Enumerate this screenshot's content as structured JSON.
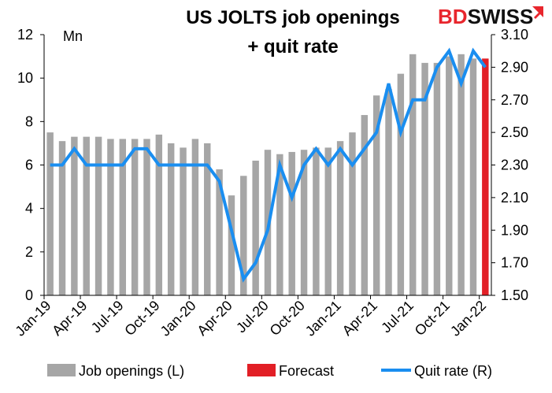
{
  "brand": {
    "text_bd": "BD",
    "text_swiss": "SWISS",
    "color_bd": "#e8262d",
    "color_swiss": "#111111"
  },
  "chart_data": {
    "type": "bar",
    "title": "US JOLTS job openings",
    "subtitle": "+ quit rate",
    "unit_label": "Mn",
    "left_axis": {
      "ylim": [
        0,
        12
      ],
      "ticks": [
        "0",
        "2",
        "4",
        "6",
        "8",
        "10",
        "12"
      ]
    },
    "right_axis": {
      "ylim": [
        1.5,
        3.1
      ],
      "ticks": [
        "1.50",
        "1.70",
        "1.90",
        "2.10",
        "2.30",
        "2.50",
        "2.70",
        "2.90",
        "3.10"
      ]
    },
    "x_tick_labels": [
      "Jan-19",
      "Apr-19",
      "Jul-19",
      "Oct-19",
      "Jan-20",
      "Apr-20",
      "Jul-20",
      "Oct-20",
      "Jan-21",
      "Apr-21",
      "Jul-21",
      "Oct-21",
      "Jan-22"
    ],
    "categories": [
      "Jan-19",
      "Feb-19",
      "Mar-19",
      "Apr-19",
      "May-19",
      "Jun-19",
      "Jul-19",
      "Aug-19",
      "Sep-19",
      "Oct-19",
      "Nov-19",
      "Dec-19",
      "Jan-20",
      "Feb-20",
      "Mar-20",
      "Apr-20",
      "May-20",
      "Jun-20",
      "Jul-20",
      "Aug-20",
      "Sep-20",
      "Oct-20",
      "Nov-20",
      "Dec-20",
      "Jan-21",
      "Feb-21",
      "Mar-21",
      "Apr-21",
      "May-21",
      "Jun-21",
      "Jul-21",
      "Aug-21",
      "Sep-21",
      "Oct-21",
      "Nov-21",
      "Dec-21",
      "Jan-22"
    ],
    "series": [
      {
        "name": "Job openings (L)",
        "type": "bar",
        "axis": "left",
        "color": "#a6a6a6",
        "values": [
          7.5,
          7.1,
          7.3,
          7.3,
          7.3,
          7.2,
          7.2,
          7.2,
          7.2,
          7.4,
          7.0,
          6.8,
          7.2,
          7.0,
          5.8,
          4.6,
          5.5,
          6.2,
          6.7,
          6.5,
          6.6,
          6.7,
          6.8,
          6.8,
          7.1,
          7.5,
          8.3,
          9.2,
          9.5,
          10.2,
          11.1,
          10.7,
          10.7,
          11.0,
          11.1,
          10.9,
          null
        ]
      },
      {
        "name": "Forecast",
        "type": "bar",
        "axis": "left",
        "color": "#e21f26",
        "values": [
          null,
          null,
          null,
          null,
          null,
          null,
          null,
          null,
          null,
          null,
          null,
          null,
          null,
          null,
          null,
          null,
          null,
          null,
          null,
          null,
          null,
          null,
          null,
          null,
          null,
          null,
          null,
          null,
          null,
          null,
          null,
          null,
          null,
          null,
          null,
          null,
          10.9
        ]
      },
      {
        "name": "Quit rate (R)",
        "type": "line",
        "axis": "right",
        "color": "#1a8ef0",
        "values": [
          2.3,
          2.3,
          2.4,
          2.3,
          2.3,
          2.3,
          2.3,
          2.4,
          2.4,
          2.3,
          2.3,
          2.3,
          2.3,
          2.3,
          2.2,
          1.9,
          1.6,
          1.7,
          1.9,
          2.3,
          2.1,
          2.3,
          2.4,
          2.3,
          2.4,
          2.3,
          2.4,
          2.5,
          2.8,
          2.5,
          2.7,
          2.7,
          2.9,
          3.0,
          2.8,
          3.0,
          2.9
        ]
      }
    ],
    "legend_position": "bottom",
    "grid": false
  }
}
